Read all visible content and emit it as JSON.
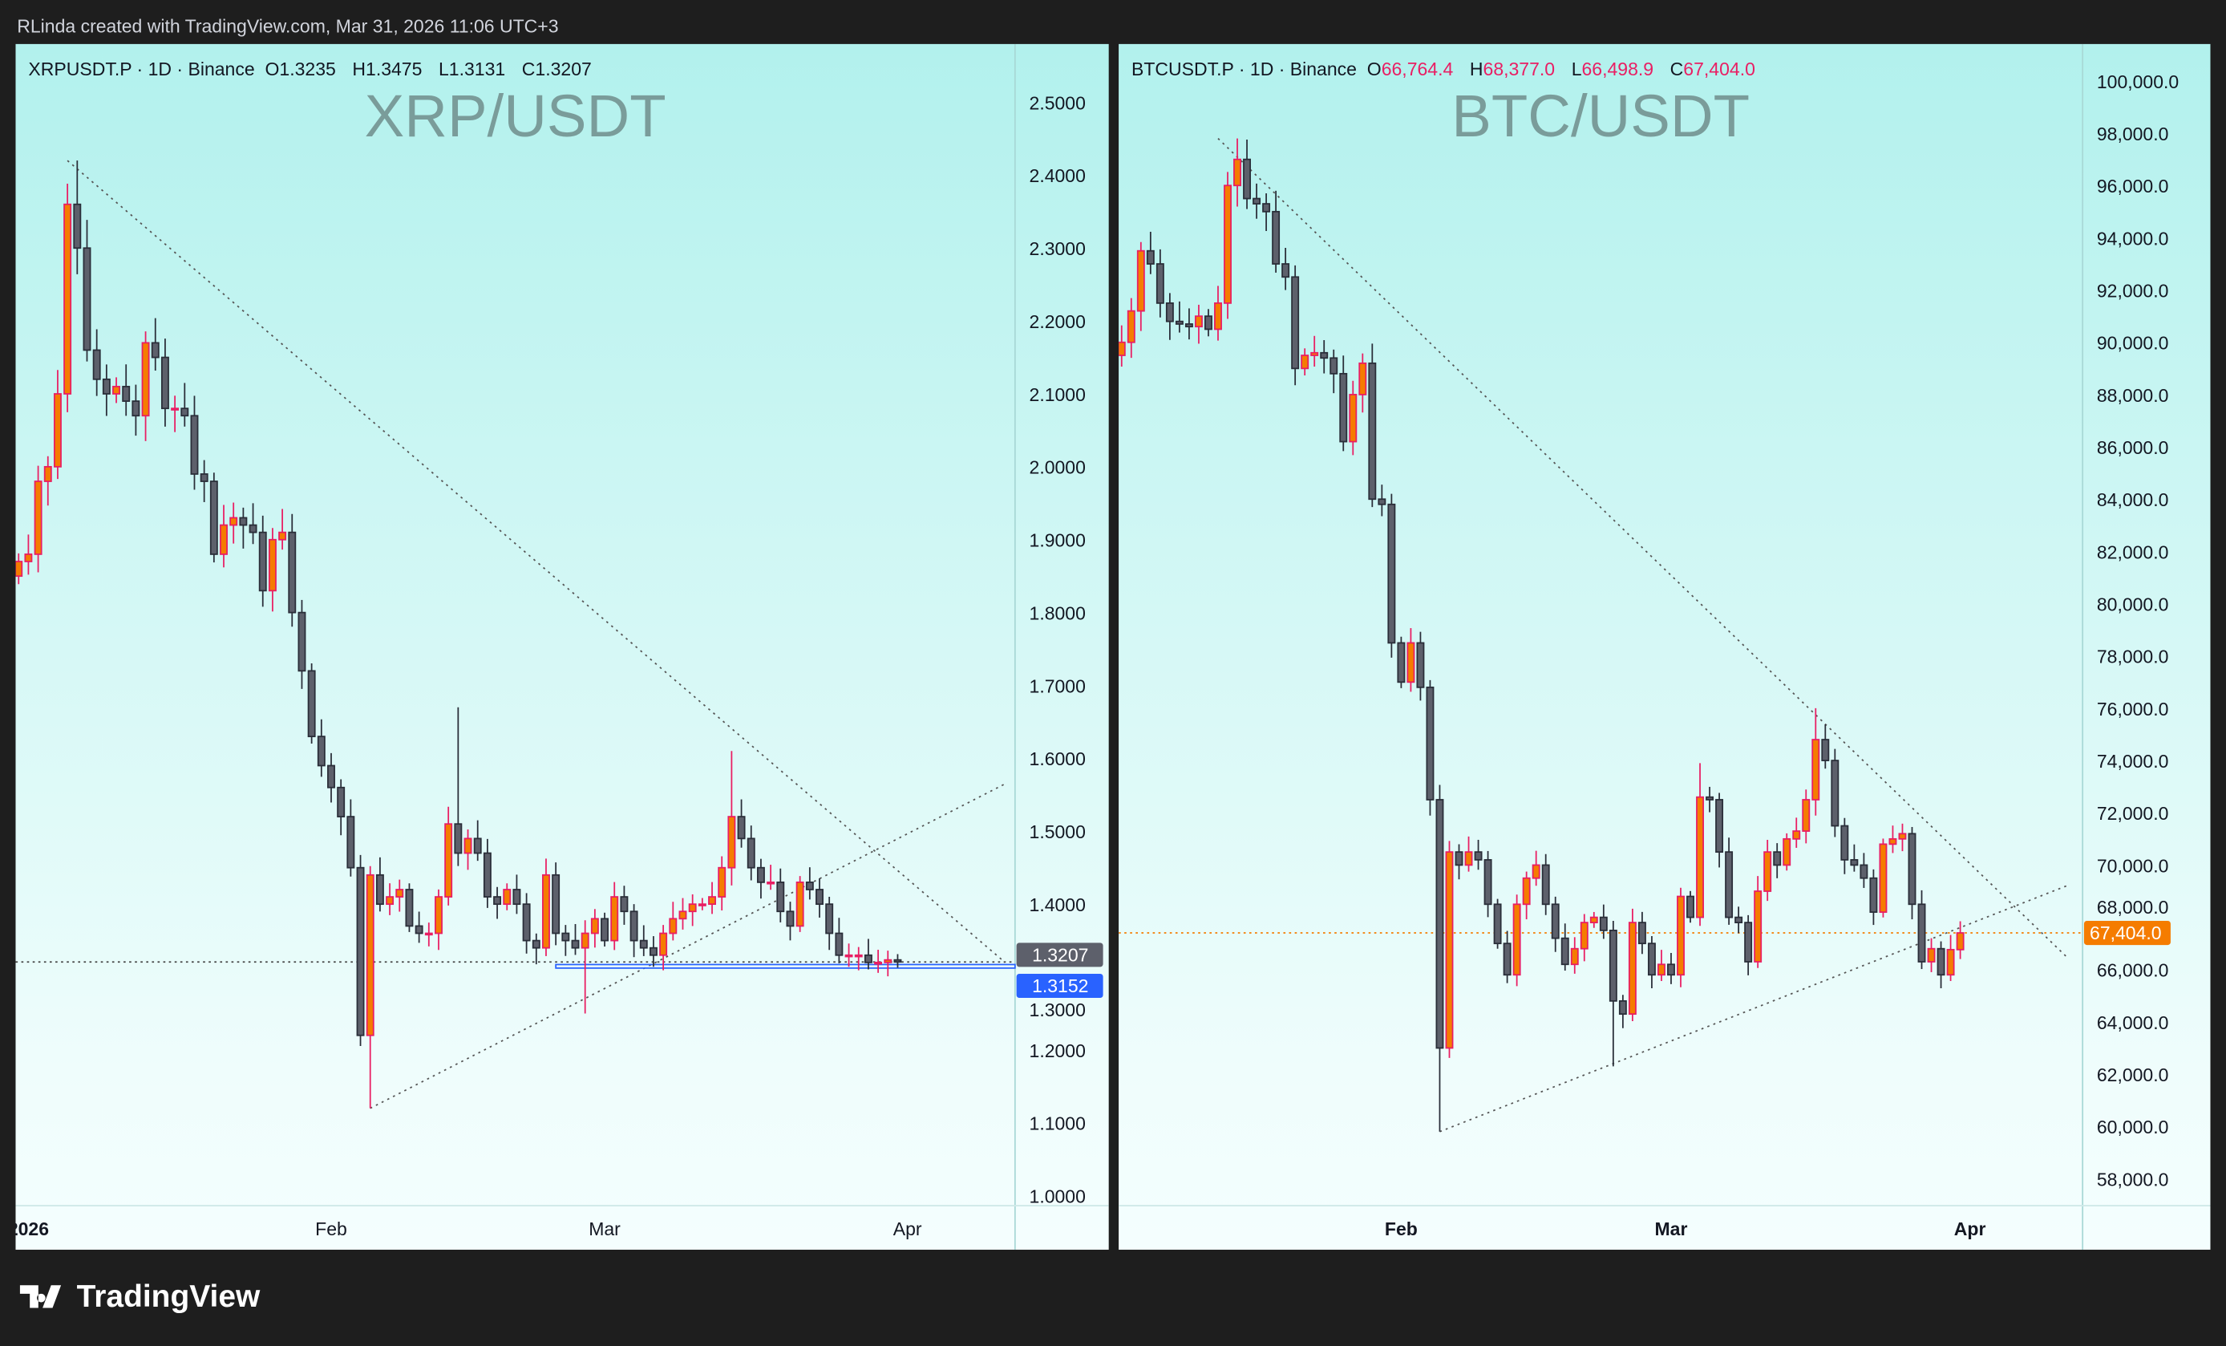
{
  "credit": "RLinda created with TradingView.com, Mar 31, 2026 11:06 UTC+3",
  "footer": {
    "brand": "TradingView",
    "icon": "tradingview-logo-icon"
  },
  "colors": {
    "up_fill": "#f57c00",
    "up_border": "#e91e63",
    "down_fill": "#5d606b",
    "down_border": "#2a2e39",
    "last_price_xrp": "#5d606b",
    "alert_line": "#2962ff",
    "last_price_btc": "#f57c00"
  },
  "chart_data": [
    {
      "type": "candlestick",
      "symbol": "XRPUSDT.P",
      "legend": {
        "symbol": "XRPUSDT.P · 1D · Binance",
        "o_label": "O",
        "o": "1.3235",
        "h_label": "H",
        "h": "1.3475",
        "l_label": "L",
        "l": "1.3131",
        "c_label": "C",
        "c": "1.3207"
      },
      "watermark": "XRP/USDT",
      "start_date": "2025-12-31",
      "closes": [
        1.87,
        1.88,
        1.98,
        2.0,
        2.1,
        2.36,
        2.3,
        2.16,
        2.12,
        2.1,
        2.11,
        2.09,
        2.07,
        2.17,
        2.15,
        2.08,
        2.08,
        2.07,
        1.99,
        1.98,
        1.88,
        1.92,
        1.93,
        1.92,
        1.91,
        1.83,
        1.9,
        1.91,
        1.8,
        1.72,
        1.63,
        1.59,
        1.56,
        1.52,
        1.45,
        1.22,
        1.44,
        1.4,
        1.41,
        1.42,
        1.37,
        1.36,
        1.36,
        1.41,
        1.51,
        1.47,
        1.49,
        1.47,
        1.41,
        1.4,
        1.42,
        1.4,
        1.35,
        1.34,
        1.44,
        1.36,
        1.35,
        1.34,
        1.36,
        1.38,
        1.35,
        1.41,
        1.39,
        1.35,
        1.34,
        1.33,
        1.36,
        1.38,
        1.39,
        1.4,
        1.4,
        1.41,
        1.45,
        1.52,
        1.49,
        1.45,
        1.43,
        1.43,
        1.39,
        1.37,
        1.43,
        1.42,
        1.4,
        1.36,
        1.33,
        1.33,
        1.33,
        1.32,
        1.32,
        1.3235,
        1.3207
      ],
      "first_open": 1.85,
      "wick_extremes": [
        {
          "date": "2026-01-06",
          "high": 2.42
        },
        {
          "date": "2026-02-05",
          "low": 1.12
        },
        {
          "date": "2026-02-14",
          "high": 1.67
        },
        {
          "date": "2026-03-14",
          "high": 1.61
        },
        {
          "date": "2026-02-27",
          "low": 1.25
        }
      ],
      "yaxis": {
        "ticks": [
          "2.5000",
          "2.4000",
          "2.3000",
          "2.2000",
          "2.1000",
          "2.0000",
          "1.9000",
          "1.8000",
          "1.7000",
          "1.6000",
          "1.5000",
          "1.4000",
          "1.3000",
          "1.2000",
          "1.1000",
          "1.0000"
        ],
        "range": [
          1.0,
          2.5
        ]
      },
      "xaxis": {
        "ticks": [
          {
            "label": "2026",
            "date": "2026-01-01"
          },
          {
            "label": "Feb",
            "date": "2026-02-01"
          },
          {
            "label": "Mar",
            "date": "2026-03-01"
          },
          {
            "label": "Apr",
            "date": "2026-04-01"
          }
        ]
      },
      "trendlines": [
        {
          "from": [
            "2026-01-05",
            2.42
          ],
          "to": [
            "2026-04-11",
            1.32
          ]
        },
        {
          "from": [
            "2026-02-05",
            1.12
          ],
          "to": [
            "2026-04-11",
            1.565
          ]
        }
      ],
      "last_price": {
        "label": "1.3207",
        "value": 1.3207
      },
      "alert_line": {
        "label": "1.3152",
        "value": 1.3152,
        "from_date": "2026-02-24"
      }
    },
    {
      "type": "candlestick",
      "symbol": "BTCUSDT.P",
      "legend": {
        "symbol": "BTCUSDT.P · 1D · Binance",
        "o_label": "O",
        "o": "66,764.4",
        "h_label": "H",
        "h": "68,377.0",
        "l_label": "L",
        "l": "66,498.9",
        "c_label": "C",
        "c": "67,404.0"
      },
      "watermark": "BTC/USDT",
      "start_date": "2026-01-02",
      "closes": [
        89500,
        90000,
        91200,
        93500,
        93000,
        91500,
        90800,
        90700,
        90600,
        91000,
        90500,
        91500,
        96000,
        97000,
        95500,
        95300,
        95000,
        93000,
        92500,
        89000,
        89500,
        89600,
        89400,
        88800,
        86200,
        88000,
        89200,
        84000,
        83800,
        78500,
        77000,
        78500,
        76800,
        72500,
        63000,
        70500,
        70000,
        70500,
        70200,
        68500,
        67000,
        65800,
        68500,
        69500,
        70000,
        68500,
        67200,
        66200,
        66800,
        67800,
        68000,
        67500,
        64800,
        64300,
        67800,
        67000,
        65800,
        66200,
        65800,
        68800,
        68000,
        72600,
        72500,
        70500,
        68000,
        67800,
        66300,
        69000,
        70500,
        70000,
        71000,
        71300,
        72500,
        74800,
        74000,
        71500,
        70200,
        70000,
        69500,
        68200,
        70800,
        71000,
        71200,
        68500,
        66300,
        66800,
        65800,
        66764.4,
        67404
      ],
      "first_open": 88800,
      "wick_extremes": [
        {
          "date": "2026-01-15",
          "high": 97800
        },
        {
          "date": "2026-02-05",
          "low": 59800
        },
        {
          "date": "2026-03-16",
          "high": 76000
        },
        {
          "date": "2026-02-23",
          "low": 62300
        },
        {
          "date": "2026-03-04",
          "high": 73900
        }
      ],
      "yaxis": {
        "ticks": [
          "100,000.0",
          "98,000.0",
          "96,000.0",
          "94,000.0",
          "92,000.0",
          "90,000.0",
          "88,000.0",
          "86,000.0",
          "84,000.0",
          "82,000.0",
          "80,000.0",
          "78,000.0",
          "76,000.0",
          "74,000.0",
          "72,000.0",
          "70,000.0",
          "68,000.0",
          "66,000.0",
          "64,000.0",
          "62,000.0",
          "60,000.0",
          "58,000.0"
        ],
        "range": [
          58000,
          100000
        ]
      },
      "xaxis": {
        "ticks": [
          {
            "label": "Feb",
            "date": "2026-02-01"
          },
          {
            "label": "Mar",
            "date": "2026-03-01"
          },
          {
            "label": "Apr",
            "date": "2026-04-01"
          }
        ]
      },
      "trendlines": [
        {
          "from": [
            "2026-01-13",
            97800
          ],
          "to": [
            "2026-04-11",
            66500
          ]
        },
        {
          "from": [
            "2026-02-05",
            59800
          ],
          "to": [
            "2026-04-11",
            69200
          ]
        }
      ],
      "last_price": {
        "label": "67,404.0",
        "value": 67404
      }
    }
  ]
}
